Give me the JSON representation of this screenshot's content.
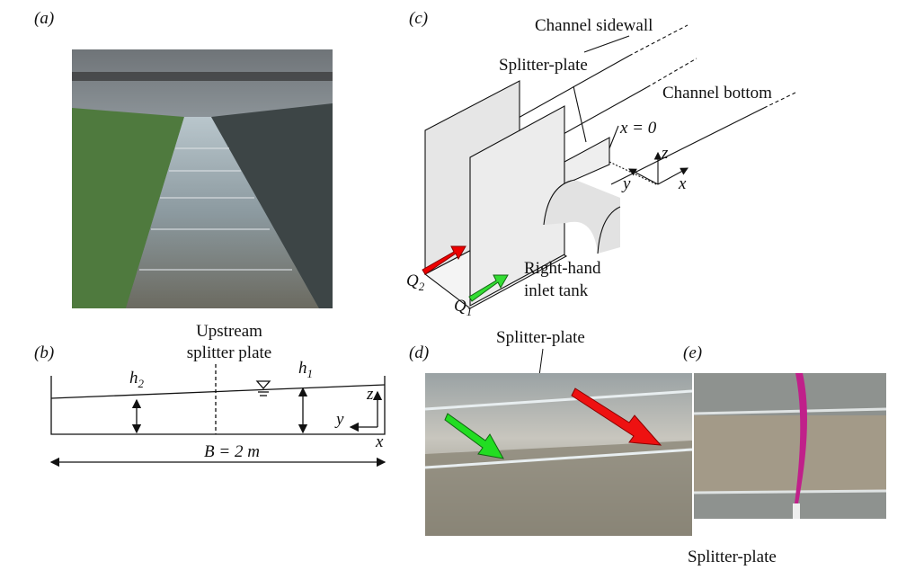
{
  "panels": {
    "a": {
      "label": "(a)"
    },
    "b": {
      "label": "(b)",
      "upstream": "Upstream",
      "splitter_plate": "splitter plate",
      "h2": {
        "symbol": "h",
        "subscript": "2"
      },
      "h1": {
        "symbol": "h",
        "subscript": "1"
      },
      "z": "z",
      "y": "y",
      "x": "x",
      "width": "B = 2 m"
    },
    "c": {
      "label": "(c)",
      "sidewall": "Channel sidewall",
      "splitter": "Splitter-plate",
      "bottom": "Channel bottom",
      "x0": "x = 0",
      "z": "z",
      "y": "y",
      "x": "x",
      "q2": {
        "symbol": "Q",
        "subscript": "2"
      },
      "q1": {
        "symbol": "Q",
        "subscript": "1"
      },
      "tank_line1": "Right-hand",
      "tank_line2": "inlet tank"
    },
    "d": {
      "label": "(d)",
      "splitter": "Splitter-plate"
    },
    "e": {
      "label": "(e)",
      "splitter": "Splitter-plate"
    }
  }
}
